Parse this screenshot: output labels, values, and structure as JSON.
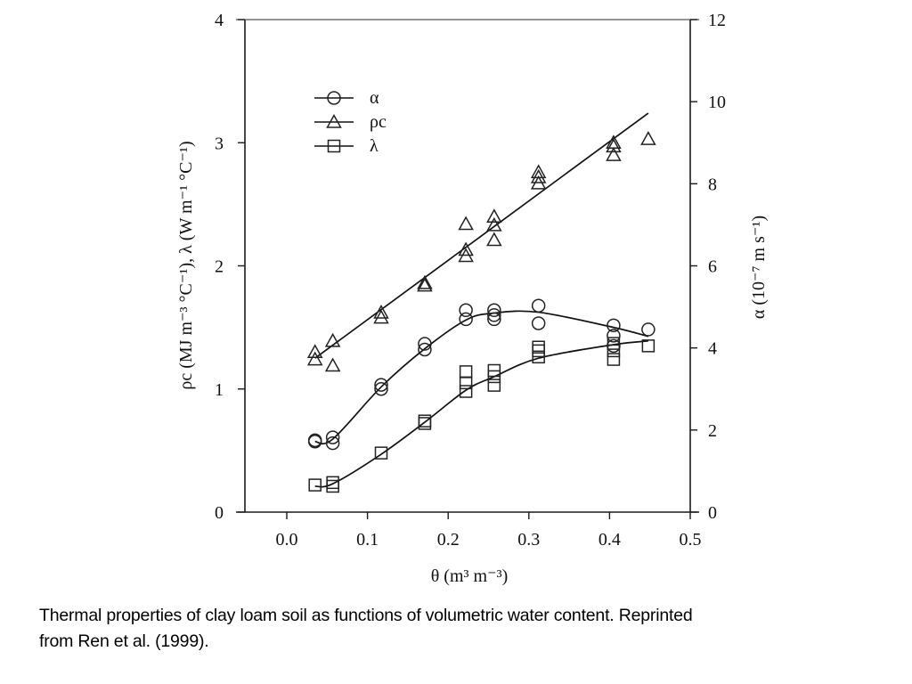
{
  "chart_data": {
    "type": "scatter",
    "title": "",
    "xlabel": "θ (m³ m⁻³)",
    "ylabel": "ρc (MJ m⁻³ °C⁻¹), λ (W m⁻¹ °C⁻¹)",
    "y2label": "α (10⁻⁷ m s⁻¹)",
    "xlim": [
      -0.05,
      0.5
    ],
    "ylim": [
      0,
      4
    ],
    "y2lim": [
      0,
      12
    ],
    "x_ticks": [
      "0.0",
      "0.1",
      "0.2",
      "0.3",
      "0.4",
      "0.5"
    ],
    "y_ticks": [
      "0",
      "1",
      "2",
      "3",
      "4"
    ],
    "y2_ticks": [
      "0",
      "2",
      "4",
      "6",
      "8",
      "10",
      "12"
    ],
    "grid": false,
    "legend_position": "upper-left",
    "legend": [
      {
        "label": "α",
        "marker": "circle"
      },
      {
        "label": "ρc",
        "marker": "triangle"
      },
      {
        "label": "λ",
        "marker": "square"
      }
    ],
    "series": [
      {
        "name": "α",
        "axis": "right",
        "marker": "circle",
        "points": [
          [
            0.035,
            1.75
          ],
          [
            0.035,
            1.72
          ],
          [
            0.057,
            1.82
          ],
          [
            0.057,
            1.68
          ],
          [
            0.117,
            3.1
          ],
          [
            0.117,
            3.0
          ],
          [
            0.171,
            4.1
          ],
          [
            0.171,
            3.96
          ],
          [
            0.222,
            4.92
          ],
          [
            0.222,
            4.7
          ],
          [
            0.257,
            4.92
          ],
          [
            0.257,
            4.8
          ],
          [
            0.257,
            4.7
          ],
          [
            0.312,
            5.03
          ],
          [
            0.312,
            4.6
          ],
          [
            0.405,
            4.55
          ],
          [
            0.405,
            4.3
          ],
          [
            0.405,
            4.05
          ],
          [
            0.448,
            4.45
          ]
        ],
        "fit_curve": [
          [
            0.035,
            1.72
          ],
          [
            0.057,
            1.78
          ],
          [
            0.117,
            3.05
          ],
          [
            0.171,
            3.98
          ],
          [
            0.222,
            4.68
          ],
          [
            0.257,
            4.85
          ],
          [
            0.312,
            4.87
          ],
          [
            0.405,
            4.5
          ],
          [
            0.448,
            4.28
          ]
        ]
      },
      {
        "name": "ρc",
        "axis": "left",
        "marker": "triangle",
        "points": [
          [
            0.035,
            1.3
          ],
          [
            0.035,
            1.24
          ],
          [
            0.057,
            1.39
          ],
          [
            0.057,
            1.19
          ],
          [
            0.117,
            1.62
          ],
          [
            0.117,
            1.58
          ],
          [
            0.171,
            1.86
          ],
          [
            0.171,
            1.84
          ],
          [
            0.222,
            2.34
          ],
          [
            0.222,
            2.13
          ],
          [
            0.222,
            2.08
          ],
          [
            0.257,
            2.4
          ],
          [
            0.257,
            2.33
          ],
          [
            0.257,
            2.21
          ],
          [
            0.312,
            2.76
          ],
          [
            0.312,
            2.72
          ],
          [
            0.312,
            2.67
          ],
          [
            0.405,
            3.0
          ],
          [
            0.405,
            2.97
          ],
          [
            0.405,
            2.9
          ],
          [
            0.448,
            3.03
          ]
        ],
        "fit_curve": [
          [
            0.035,
            1.25
          ],
          [
            0.448,
            3.24
          ]
        ]
      },
      {
        "name": "λ",
        "axis": "left",
        "marker": "square",
        "points": [
          [
            0.035,
            0.22
          ],
          [
            0.057,
            0.24
          ],
          [
            0.057,
            0.21
          ],
          [
            0.117,
            0.48
          ],
          [
            0.171,
            0.74
          ],
          [
            0.171,
            0.72
          ],
          [
            0.222,
            1.14
          ],
          [
            0.222,
            1.05
          ],
          [
            0.222,
            0.98
          ],
          [
            0.257,
            1.15
          ],
          [
            0.257,
            1.1
          ],
          [
            0.257,
            1.03
          ],
          [
            0.312,
            1.34
          ],
          [
            0.312,
            1.31
          ],
          [
            0.312,
            1.26
          ],
          [
            0.405,
            1.37
          ],
          [
            0.405,
            1.31
          ],
          [
            0.405,
            1.24
          ],
          [
            0.448,
            1.35
          ]
        ],
        "fit_curve": [
          [
            0.035,
            0.21
          ],
          [
            0.057,
            0.23
          ],
          [
            0.117,
            0.47
          ],
          [
            0.171,
            0.73
          ],
          [
            0.222,
            0.99
          ],
          [
            0.257,
            1.1
          ],
          [
            0.312,
            1.25
          ],
          [
            0.405,
            1.36
          ],
          [
            0.448,
            1.39
          ]
        ]
      }
    ]
  },
  "caption": {
    "line1": "Thermal properties of clay loam soil as functions of volumetric water content.  Reprinted",
    "line2": "from Ren et al. (1999)."
  }
}
